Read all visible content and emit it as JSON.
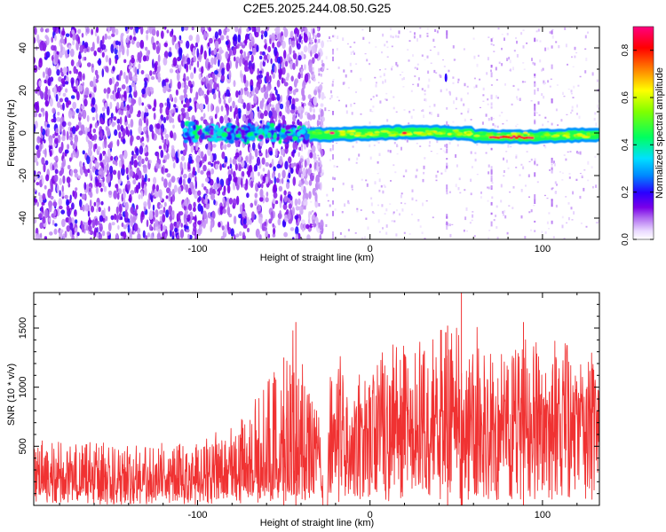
{
  "title": "C2E5.2025.244.08.50.G25",
  "chart_data": [
    {
      "type": "heatmap",
      "xlabel": "Height of straight line (km)",
      "ylabel": "Frequency (Hz)",
      "xlim": [
        -195,
        133
      ],
      "ylim": [
        -50,
        50
      ],
      "x_ticks": [
        -100,
        0,
        100
      ],
      "y_ticks": [
        -40,
        -20,
        0,
        20,
        40
      ],
      "colorbar": {
        "label": "Normalized spectral amplitude",
        "range": [
          0,
          0.9
        ],
        "ticks": [
          "0.0",
          "0.2",
          "0.4",
          "0.6",
          "0.8"
        ],
        "colormap": "rainbow"
      },
      "features": [
        {
          "x_range": [
            -195,
            -35
          ],
          "y_range": [
            -50,
            50
          ],
          "amplitude": 0.1,
          "note": "broadband noise"
        },
        {
          "x_range": [
            -108,
            -35
          ],
          "y_center": 0,
          "amplitude": 0.35
        },
        {
          "x_range": [
            -35,
            133
          ],
          "y_center": 0,
          "amplitude": 0.45
        },
        {
          "x": -22,
          "y": 0,
          "amplitude": 0.9
        },
        {
          "x": 20,
          "y": 0,
          "amplitude": 0.85
        },
        {
          "x_range": [
            70,
            95
          ],
          "y": -2,
          "amplitude": 0.9
        },
        {
          "x": 44,
          "y": 26,
          "amplitude": 0.2
        }
      ]
    },
    {
      "type": "line",
      "xlabel": "Height of straight line (km)",
      "ylabel": "SNR (10 * v/v)",
      "xlim": [
        -195,
        133
      ],
      "ylim": [
        0,
        1800
      ],
      "x_ticks": [
        -100,
        0,
        100
      ],
      "y_ticks": [
        500,
        1000,
        1500
      ],
      "color": "#f03232",
      "envelope": {
        "x": [
          -195,
          -140,
          -100,
          -80,
          -70,
          -60,
          -50,
          -45,
          -40,
          -35,
          -30,
          -26,
          -24,
          -20,
          -10,
          0,
          10,
          20,
          30,
          40,
          50,
          60,
          70,
          80,
          90,
          100,
          110,
          120,
          133
        ],
        "mean": [
          220,
          210,
          210,
          250,
          290,
          330,
          390,
          440,
          470,
          440,
          380,
          300,
          560,
          620,
          640,
          630,
          680,
          700,
          720,
          730,
          740,
          760,
          750,
          760,
          760,
          770,
          760,
          760,
          760
        ],
        "peak": [
          580,
          520,
          540,
          700,
          820,
          1050,
          1250,
          1550,
          1300,
          950,
          800,
          650,
          1050,
          1300,
          1150,
          1100,
          1400,
          1350,
          1400,
          1500,
          1500,
          1550,
          1350,
          1400,
          1450,
          1350,
          1450,
          1300,
          1300
        ]
      },
      "spikes": [
        {
          "x": 53,
          "y": 1800
        },
        {
          "x": -43,
          "y": 1550
        },
        {
          "x": -50,
          "y": 1250
        },
        {
          "x": 89,
          "y": 1550
        },
        {
          "x": 45,
          "y": 1520
        }
      ]
    }
  ]
}
